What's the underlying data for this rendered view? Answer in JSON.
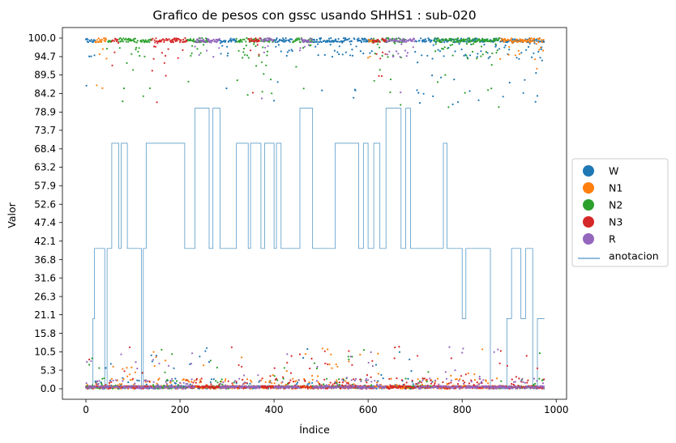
{
  "chart_data": {
    "type": "scatter",
    "title": "Grafico de pesos con gssc usando SHHS1 :  sub-020",
    "xlabel": "Índice",
    "ylabel": "Valor",
    "xlim": [
      -50,
      1022
    ],
    "ylim": [
      -3,
      103
    ],
    "x_ticks": [
      0,
      200,
      400,
      600,
      800,
      1000
    ],
    "x_tick_labels": [
      "0",
      "200",
      "400",
      "600",
      "800",
      "1000"
    ],
    "y_ticks": [
      0.0,
      5.3,
      10.5,
      15.8,
      21.1,
      26.3,
      31.6,
      36.8,
      42.1,
      47.4,
      52.6,
      57.9,
      63.2,
      68.4,
      73.7,
      78.9,
      84.2,
      89.5,
      94.7,
      100.0
    ],
    "y_tick_labels": [
      "0.0",
      "5.3",
      "10.5",
      "15.8",
      "21.1",
      "26.3",
      "31.6",
      "36.8",
      "42.1",
      "47.4",
      "52.6",
      "57.9",
      "63.2",
      "68.4",
      "73.7",
      "78.9",
      "84.2",
      "89.5",
      "94.7",
      "100.0"
    ],
    "grid": false,
    "legend_position": "center-right-outside",
    "n_points": 975,
    "annotation_segments": [
      [
        0,
        15,
        0
      ],
      [
        15,
        18,
        20
      ],
      [
        18,
        40,
        40
      ],
      [
        40,
        45,
        0
      ],
      [
        45,
        55,
        40
      ],
      [
        55,
        70,
        70
      ],
      [
        70,
        75,
        40
      ],
      [
        75,
        88,
        70
      ],
      [
        88,
        118,
        40
      ],
      [
        118,
        122,
        0
      ],
      [
        122,
        128,
        40
      ],
      [
        128,
        210,
        70
      ],
      [
        210,
        232,
        40
      ],
      [
        232,
        262,
        80
      ],
      [
        262,
        270,
        40
      ],
      [
        270,
        285,
        80
      ],
      [
        285,
        320,
        40
      ],
      [
        320,
        345,
        70
      ],
      [
        345,
        350,
        40
      ],
      [
        350,
        372,
        70
      ],
      [
        372,
        380,
        40
      ],
      [
        380,
        400,
        70
      ],
      [
        400,
        405,
        40
      ],
      [
        405,
        415,
        70
      ],
      [
        415,
        455,
        40
      ],
      [
        455,
        482,
        80
      ],
      [
        482,
        530,
        40
      ],
      [
        530,
        580,
        70
      ],
      [
        580,
        590,
        40
      ],
      [
        590,
        600,
        70
      ],
      [
        600,
        612,
        40
      ],
      [
        612,
        625,
        70
      ],
      [
        625,
        638,
        40
      ],
      [
        638,
        670,
        80
      ],
      [
        670,
        680,
        40
      ],
      [
        680,
        690,
        80
      ],
      [
        690,
        740,
        40
      ],
      [
        740,
        760,
        40
      ],
      [
        760,
        768,
        70
      ],
      [
        768,
        800,
        40
      ],
      [
        800,
        808,
        20
      ],
      [
        808,
        818,
        40
      ],
      [
        818,
        860,
        40
      ],
      [
        860,
        895,
        0
      ],
      [
        895,
        905,
        20
      ],
      [
        905,
        925,
        40
      ],
      [
        925,
        935,
        20
      ],
      [
        935,
        950,
        40
      ],
      [
        950,
        960,
        0
      ],
      [
        960,
        975,
        20
      ]
    ],
    "series": [
      {
        "name": "W",
        "color": "#1f77b4",
        "high_ranges": [
          [
            0,
            20
          ],
          [
            285,
            320
          ],
          [
            400,
            440
          ],
          [
            482,
            610
          ],
          [
            700,
            975
          ]
        ]
      },
      {
        "name": "N1",
        "color": "#ff7f0e",
        "high_ranges": [
          [
            20,
            45
          ],
          [
            600,
            612
          ],
          [
            880,
            975
          ]
        ]
      },
      {
        "name": "N2",
        "color": "#2ca02c",
        "high_ranges": [
          [
            45,
            55
          ],
          [
            70,
            140
          ],
          [
            215,
            260
          ],
          [
            320,
            400
          ],
          [
            440,
            482
          ],
          [
            610,
            680
          ],
          [
            740,
            880
          ]
        ]
      },
      {
        "name": "N3",
        "color": "#d62728",
        "high_ranges": [
          [
            55,
            70
          ],
          [
            140,
            215
          ],
          [
            345,
            372
          ],
          [
            610,
            640
          ]
        ]
      },
      {
        "name": "R",
        "color": "#9467bd",
        "high_ranges": [
          [
            232,
            285
          ],
          [
            372,
            400
          ],
          [
            455,
            482
          ],
          [
            638,
            700
          ]
        ]
      }
    ],
    "legend": [
      {
        "label": "W",
        "color": "#1f77b4",
        "kind": "marker"
      },
      {
        "label": "N1",
        "color": "#ff7f0e",
        "kind": "marker"
      },
      {
        "label": "N2",
        "color": "#2ca02c",
        "kind": "marker"
      },
      {
        "label": "N3",
        "color": "#d62728",
        "kind": "marker"
      },
      {
        "label": "R",
        "color": "#9467bd",
        "kind": "marker"
      },
      {
        "label": "anotacion",
        "color": "#1f77b4",
        "kind": "line"
      }
    ]
  }
}
